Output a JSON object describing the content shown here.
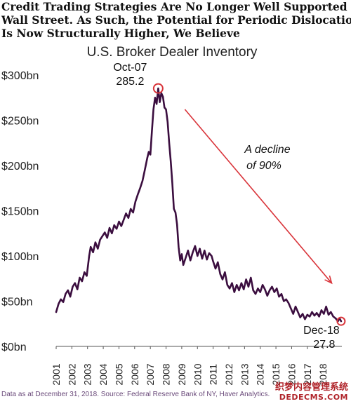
{
  "headline": {
    "line1": "Credit Trading Strategies Are No Longer Well Supported by",
    "line2": "Wall Street. As Such, the Potential for Periodic Dislocations",
    "line3": "Is Now Structurally Higher, We Believe"
  },
  "chart_data": {
    "type": "line",
    "title": "U.S. Broker Dealer Inventory",
    "xlabel": "",
    "ylabel": "",
    "ylim": [
      0,
      300
    ],
    "xlim": [
      2001,
      2019.2
    ],
    "x_ticks": [
      "2001",
      "2002",
      "2003",
      "2004",
      "2005",
      "2006",
      "2007",
      "2008",
      "2009",
      "2010",
      "2011",
      "2012",
      "2013",
      "2014",
      "2015",
      "2016",
      "2017",
      "2018"
    ],
    "y_ticks": [
      0,
      50,
      100,
      150,
      200,
      250,
      300
    ],
    "y_tick_labels": [
      "$0bn",
      "$50bn",
      "$100bn",
      "$150bn",
      "$200bn",
      "$250bn",
      "$300bn"
    ],
    "grid": false,
    "line_color": "#3b0e3f",
    "highlight_color": "#d9343a",
    "series": [
      {
        "name": "",
        "points": [
          [
            2001.0,
            38
          ],
          [
            2001.15,
            47
          ],
          [
            2001.3,
            52
          ],
          [
            2001.45,
            49
          ],
          [
            2001.6,
            58
          ],
          [
            2001.75,
            62
          ],
          [
            2001.9,
            55
          ],
          [
            2002.05,
            66
          ],
          [
            2002.2,
            70
          ],
          [
            2002.35,
            63
          ],
          [
            2002.5,
            76
          ],
          [
            2002.65,
            72
          ],
          [
            2002.8,
            82
          ],
          [
            2002.95,
            78
          ],
          [
            2003.1,
            100
          ],
          [
            2003.2,
            110
          ],
          [
            2003.35,
            104
          ],
          [
            2003.5,
            115
          ],
          [
            2003.65,
            108
          ],
          [
            2003.8,
            118
          ],
          [
            2003.95,
            122
          ],
          [
            2004.1,
            126
          ],
          [
            2004.25,
            120
          ],
          [
            2004.4,
            131
          ],
          [
            2004.55,
            125
          ],
          [
            2004.7,
            134
          ],
          [
            2004.85,
            130
          ],
          [
            2005.0,
            138
          ],
          [
            2005.15,
            133
          ],
          [
            2005.3,
            140
          ],
          [
            2005.45,
            147
          ],
          [
            2005.6,
            142
          ],
          [
            2005.75,
            152
          ],
          [
            2005.9,
            148
          ],
          [
            2006.05,
            160
          ],
          [
            2006.2,
            168
          ],
          [
            2006.35,
            175
          ],
          [
            2006.5,
            183
          ],
          [
            2006.65,
            195
          ],
          [
            2006.8,
            208
          ],
          [
            2006.9,
            215
          ],
          [
            2007.0,
            212
          ],
          [
            2007.1,
            238
          ],
          [
            2007.2,
            262
          ],
          [
            2007.3,
            275
          ],
          [
            2007.4,
            268
          ],
          [
            2007.5,
            285.2
          ],
          [
            2007.6,
            270
          ],
          [
            2007.7,
            280
          ],
          [
            2007.8,
            276
          ],
          [
            2007.9,
            264
          ],
          [
            2008.0,
            262
          ],
          [
            2008.1,
            248
          ],
          [
            2008.2,
            225
          ],
          [
            2008.3,
            205
          ],
          [
            2008.4,
            180
          ],
          [
            2008.5,
            152
          ],
          [
            2008.6,
            148
          ],
          [
            2008.7,
            135
          ],
          [
            2008.8,
            110
          ],
          [
            2008.9,
            95
          ],
          [
            2009.0,
            102
          ],
          [
            2009.1,
            90
          ],
          [
            2009.25,
            98
          ],
          [
            2009.4,
            106
          ],
          [
            2009.55,
            95
          ],
          [
            2009.7,
            104
          ],
          [
            2009.85,
            111
          ],
          [
            2010.0,
            100
          ],
          [
            2010.15,
            108
          ],
          [
            2010.3,
            97
          ],
          [
            2010.45,
            106
          ],
          [
            2010.6,
            96
          ],
          [
            2010.75,
            103
          ],
          [
            2010.9,
            100
          ],
          [
            2011.0,
            94
          ],
          [
            2011.15,
            86
          ],
          [
            2011.3,
            93
          ],
          [
            2011.45,
            80
          ],
          [
            2011.6,
            74
          ],
          [
            2011.75,
            82
          ],
          [
            2011.9,
            68
          ],
          [
            2012.05,
            64
          ],
          [
            2012.2,
            70
          ],
          [
            2012.35,
            60
          ],
          [
            2012.5,
            68
          ],
          [
            2012.65,
            62
          ],
          [
            2012.8,
            70
          ],
          [
            2012.95,
            63
          ],
          [
            2013.1,
            74
          ],
          [
            2013.25,
            66
          ],
          [
            2013.4,
            76
          ],
          [
            2013.55,
            62
          ],
          [
            2013.7,
            58
          ],
          [
            2013.85,
            64
          ],
          [
            2014.0,
            60
          ],
          [
            2014.15,
            68
          ],
          [
            2014.3,
            63
          ],
          [
            2014.45,
            56
          ],
          [
            2014.6,
            62
          ],
          [
            2014.75,
            66
          ],
          [
            2014.9,
            60
          ],
          [
            2015.05,
            64
          ],
          [
            2015.2,
            55
          ],
          [
            2015.35,
            58
          ],
          [
            2015.5,
            50
          ],
          [
            2015.65,
            52
          ],
          [
            2015.8,
            48
          ],
          [
            2015.95,
            42
          ],
          [
            2016.1,
            36
          ],
          [
            2016.25,
            44
          ],
          [
            2016.4,
            38
          ],
          [
            2016.55,
            32
          ],
          [
            2016.7,
            36
          ],
          [
            2016.85,
            30
          ],
          [
            2017.0,
            35
          ],
          [
            2017.15,
            33
          ],
          [
            2017.3,
            38
          ],
          [
            2017.45,
            34
          ],
          [
            2017.6,
            37
          ],
          [
            2017.75,
            33
          ],
          [
            2017.9,
            40
          ],
          [
            2018.05,
            36
          ],
          [
            2018.2,
            44
          ],
          [
            2018.35,
            35
          ],
          [
            2018.5,
            38
          ],
          [
            2018.65,
            33
          ],
          [
            2018.8,
            31
          ],
          [
            2018.95,
            27.8
          ],
          [
            2019.05,
            31
          ],
          [
            2019.15,
            27.8
          ]
        ]
      }
    ],
    "annotations": {
      "peak_label": "Oct-07",
      "peak_value": "285.2",
      "peak_x": 2007.5,
      "peak_y": 285.2,
      "end_label": "Dec-18",
      "end_value": "27.8",
      "end_x": 2019.15,
      "end_y": 27.8,
      "decline_line1": "A decline",
      "decline_line2": "of 90%",
      "arrow_from": [
        2009.2,
        262
      ],
      "arrow_to": [
        2018.55,
        70
      ]
    }
  },
  "footer": {
    "source": "Data as at December 31, 2018. Source: Federal Reserve Bank of NY, Haver Analytics."
  },
  "watermark": {
    "line1": "织梦内容管理系统",
    "line2": "DEDECMS.COM"
  }
}
